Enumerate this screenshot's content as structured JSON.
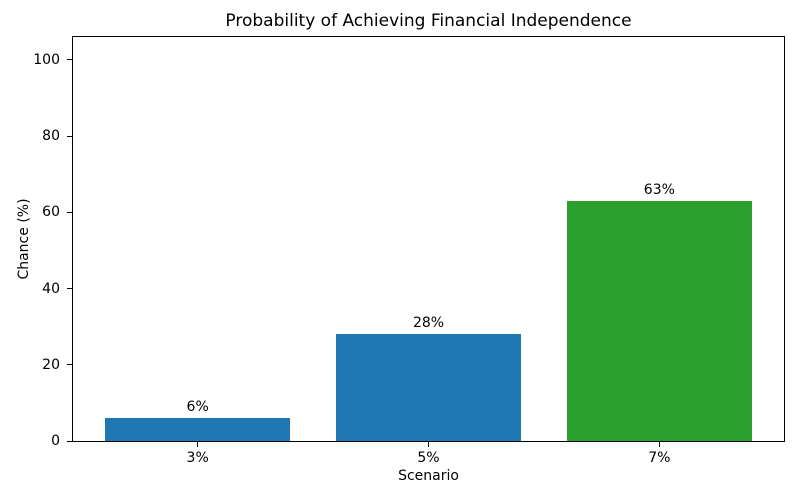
{
  "chart_data": {
    "type": "bar",
    "title": "Probability of Achieving Financial Independence",
    "xlabel": "Scenario",
    "ylabel": "Chance (%)",
    "categories": [
      "3%",
      "5%",
      "7%"
    ],
    "values": [
      6,
      28,
      63
    ],
    "bar_labels": [
      "6%",
      "28%",
      "63%"
    ],
    "bar_colors": [
      "#1f77b4",
      "#1f77b4",
      "#2ca02c"
    ],
    "bar_width_fraction": 0.8,
    "yticks": [
      0,
      20,
      40,
      60,
      80,
      100
    ],
    "ylim": [
      0,
      106
    ],
    "grid": false,
    "background_color": "#ffffff",
    "spine_color": "#000000",
    "text_color": "#000000"
  }
}
